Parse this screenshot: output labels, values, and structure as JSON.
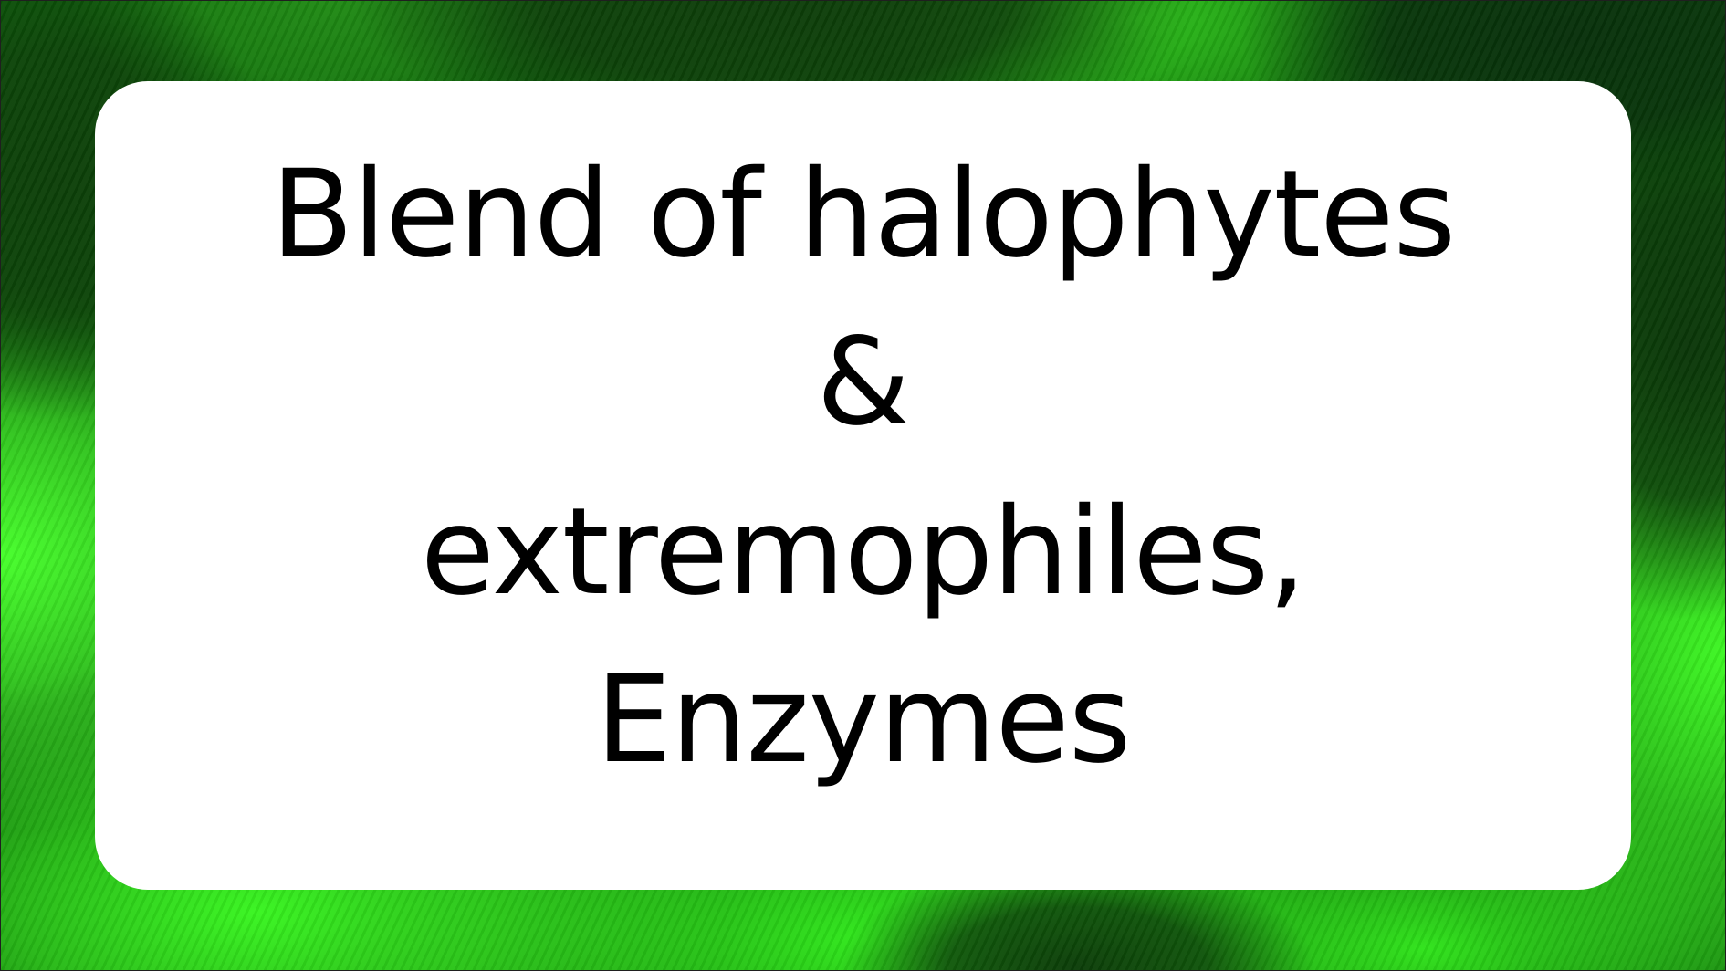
{
  "label": {
    "line1": "Blend of halophytes",
    "line2": "&",
    "line3": "extremophiles,",
    "line4": "Enzymes"
  },
  "colors": {
    "card_background": "#ffffff",
    "text": "#000000",
    "backdrop_bright": "#46ff2a",
    "backdrop_dark": "#0b5a08"
  }
}
